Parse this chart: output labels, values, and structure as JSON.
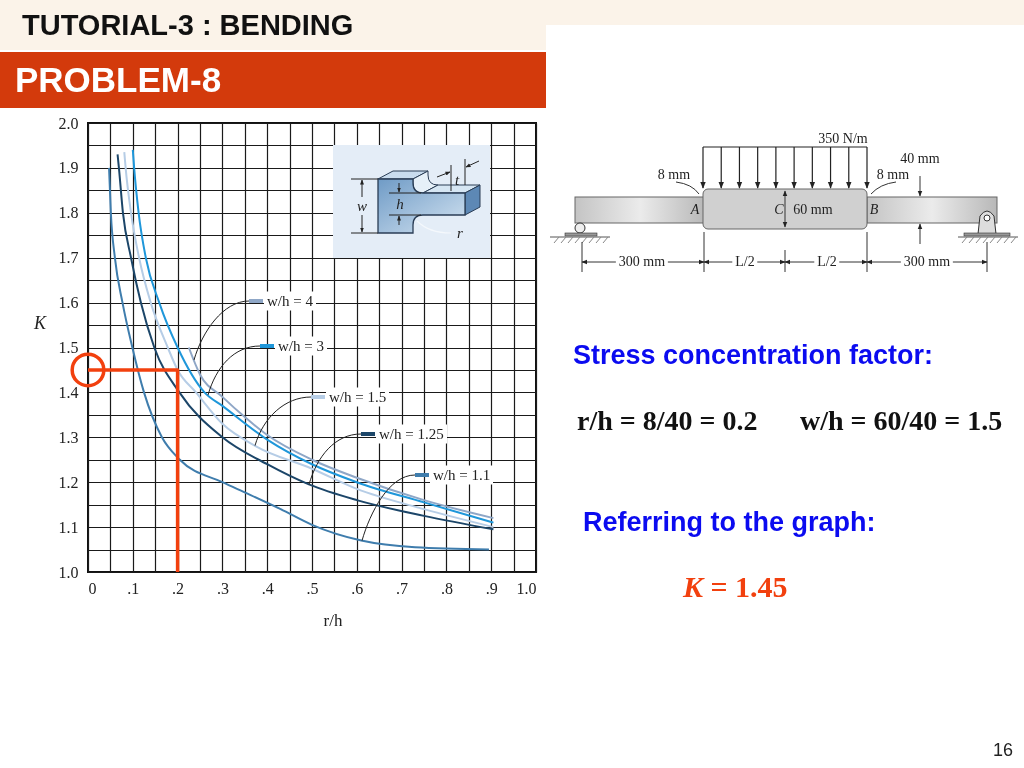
{
  "chart_data": {
    "type": "line",
    "title": "TUTORIAL-3 : BENDING",
    "subtitle": "PROBLEM-8",
    "xlabel": "r/h",
    "ylabel": "K",
    "xlim": [
      0,
      1.0
    ],
    "ylim": [
      1.0,
      2.0
    ],
    "xticks": [
      0,
      {
        "value": 0.05,
        "label": null
      },
      {
        "value": 0.1,
        "label": ".1"
      },
      {
        "value": 0.15,
        "label": null
      },
      {
        "value": 0.2,
        "label": ".2"
      },
      {
        "value": 0.25,
        "label": null
      },
      {
        "value": 0.3,
        "label": ".3"
      },
      {
        "value": 0.35,
        "label": null
      },
      {
        "value": 0.4,
        "label": ".4"
      },
      {
        "value": 0.45,
        "label": null
      },
      {
        "value": 0.5,
        "label": ".5"
      },
      {
        "value": 0.55,
        "label": null
      },
      {
        "value": 0.6,
        "label": ".6"
      },
      {
        "value": 0.65,
        "label": null
      },
      {
        "value": 0.7,
        "label": ".7"
      },
      {
        "value": 0.75,
        "label": null
      },
      {
        "value": 0.8,
        "label": ".8"
      },
      {
        "value": 0.85,
        "label": null
      },
      {
        "value": 0.9,
        "label": ".9"
      },
      {
        "value": 0.95,
        "label": null
      },
      {
        "value": 1.0,
        "label": "1.0"
      }
    ],
    "yticks": [
      {
        "value": 1.0,
        "label": "1.0"
      },
      {
        "value": 1.05,
        "label": null
      },
      1.1,
      {
        "value": 1.15,
        "label": null
      },
      1.2,
      {
        "value": 1.25,
        "label": null
      },
      1.3,
      {
        "value": 1.35,
        "label": null
      },
      1.4,
      {
        "value": 1.45,
        "label": null
      },
      1.5,
      {
        "value": 1.55,
        "label": null
      },
      1.6,
      {
        "value": 1.65,
        "label": null
      },
      1.7,
      {
        "value": 1.75,
        "label": null
      },
      1.8,
      {
        "value": 1.85,
        "label": null
      },
      1.9,
      {
        "value": 1.95,
        "label": null
      },
      {
        "value": 2.0,
        "label": "2.0"
      }
    ],
    "grid": true,
    "legend": "right",
    "series": [
      {
        "name": "w/h = 4",
        "color": "#8fa7c7",
        "x": [
          0.225,
          0.25,
          0.3,
          0.35,
          0.4,
          0.5,
          0.6,
          0.75,
          0.905
        ],
        "values": [
          1.5,
          1.44,
          1.39,
          1.345,
          1.305,
          1.25,
          1.21,
          1.16,
          1.12
        ]
      },
      {
        "name": "w/h = 3",
        "color": "#1f97da",
        "x": [
          0.1,
          0.103,
          0.113,
          0.129,
          0.159,
          0.2,
          0.26,
          0.3,
          0.4,
          0.5,
          0.6,
          0.75,
          0.905
        ],
        "values": [
          1.94,
          1.9,
          1.8,
          1.7,
          1.6,
          1.5,
          1.4,
          1.37,
          1.295,
          1.24,
          1.2,
          1.155,
          1.11
        ]
      },
      {
        "name": "w/h = 1.5",
        "color": "#b6cde6",
        "x": [
          0.081,
          0.084,
          0.096,
          0.114,
          0.14,
          0.178,
          0.2,
          0.241,
          0.3,
          0.375,
          0.5,
          0.6,
          0.75,
          0.905
        ],
        "values": [
          1.935,
          1.9,
          1.8,
          1.7,
          1.6,
          1.5,
          1.45,
          1.4,
          1.33,
          1.28,
          1.23,
          1.185,
          1.14,
          1.1
        ]
      },
      {
        "name": "w/h = 1.25",
        "color": "#1c4669",
        "x": [
          0.066,
          0.069,
          0.078,
          0.096,
          0.118,
          0.148,
          0.204,
          0.3,
          0.4,
          0.493,
          0.6,
          0.75,
          0.905
        ],
        "values": [
          1.93,
          1.9,
          1.8,
          1.7,
          1.6,
          1.5,
          1.4,
          1.3,
          1.24,
          1.195,
          1.16,
          1.125,
          1.095
        ]
      },
      {
        "name": "w/h = 1.1",
        "color": "#3f7dad",
        "x": [
          0.047,
          0.051,
          0.06,
          0.077,
          0.099,
          0.125,
          0.165,
          0.205,
          0.3,
          0.355,
          0.43,
          0.5,
          0.61,
          0.73,
          0.895
        ],
        "values": [
          1.9,
          1.8,
          1.7,
          1.6,
          1.5,
          1.4,
          1.3,
          1.25,
          1.2,
          1.175,
          1.14,
          1.105,
          1.07,
          1.055,
          1.05
        ]
      },
      {
        "color": "#f2400e",
        "x": [
          0,
          0.2,
          0.2
        ],
        "values": [
          1.45,
          1.45,
          1.0
        ]
      },
      {
        "color": "#f2400e",
        "type": "scatter",
        "marker": "circle",
        "x": [
          0
        ],
        "values": [
          1.45
        ]
      }
    ],
    "annotations": [
      "w",
      "h",
      "t",
      "r",
      "350 N/m",
      "8 mm",
      "8 mm",
      "40 mm",
      "A",
      "C",
      "60 mm",
      "B",
      "300 mm",
      "L/2",
      "L/2",
      "300 mm",
      "Stress concentration factor:",
      "r/h = 8/40 = 0.2",
      "w/h = 60/40 = 1.5",
      "Referring to the graph:",
      "K = 1.45",
      "16"
    ]
  }
}
